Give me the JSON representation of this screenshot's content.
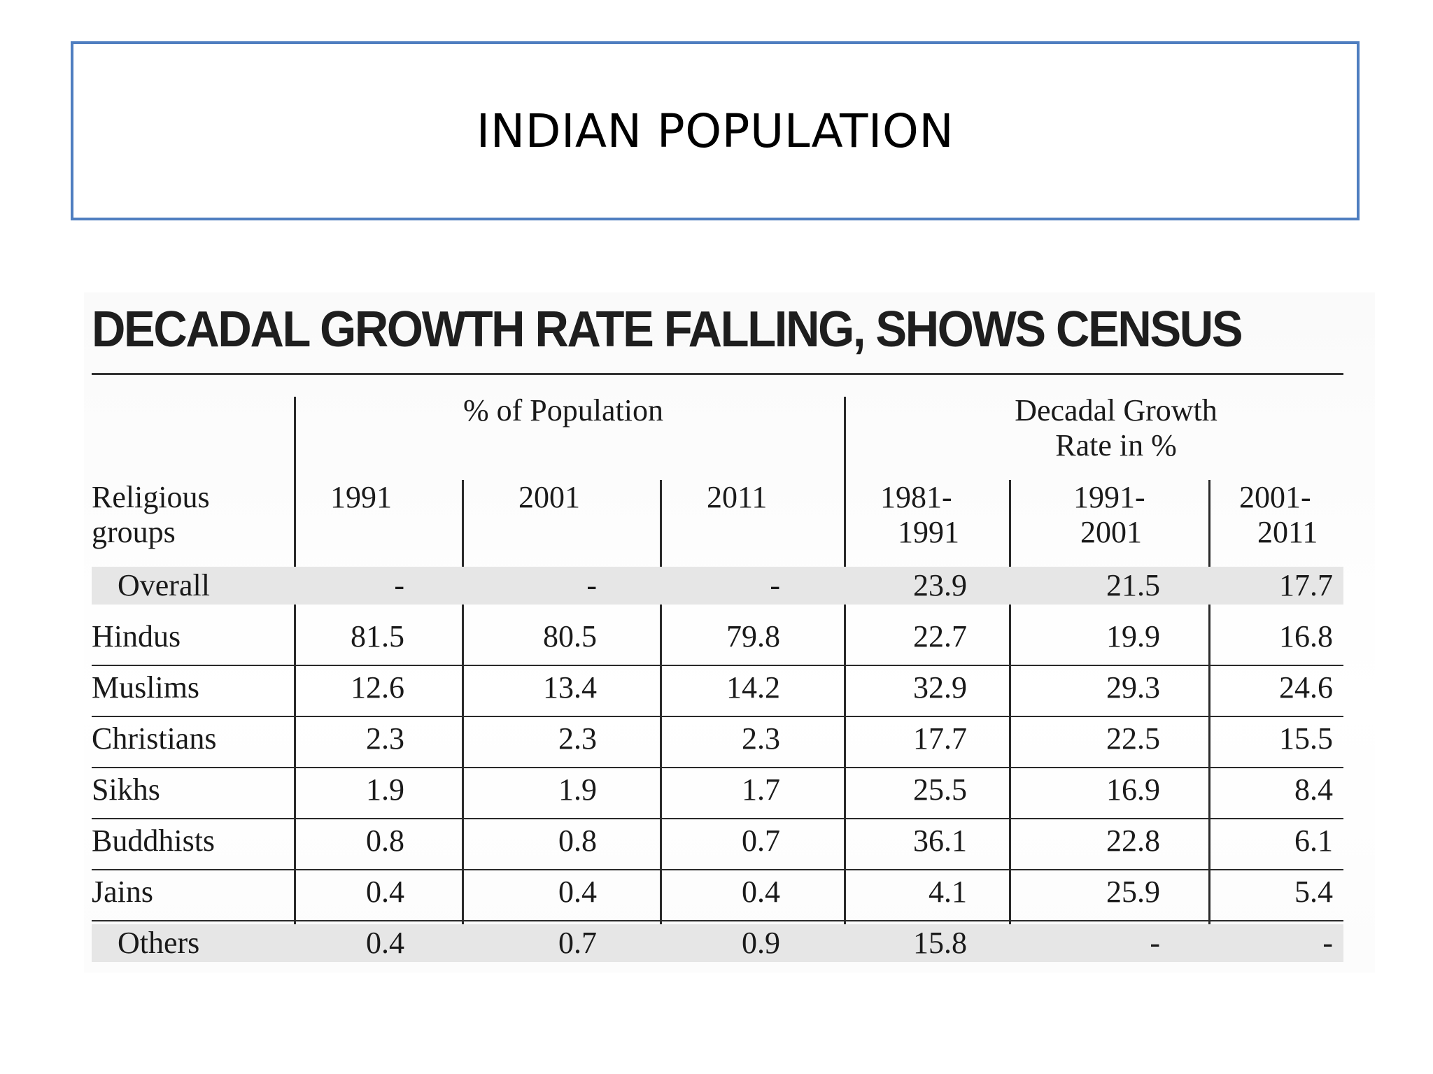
{
  "slide": {
    "title": "INDIAN POPULATION"
  },
  "clipping": {
    "headline": "DECADAL GROWTH RATE FALLING, SHOWS CENSUS",
    "group_headers": {
      "population": "% of Population",
      "growth_line1": "Decadal Growth",
      "growth_line2": "Rate in %"
    },
    "columns": {
      "label_line1": "Religious",
      "label_line2": "groups",
      "c1": "1991",
      "c2": "2001",
      "c3": "2011",
      "c4_line1": "1981-",
      "c4_line2": "1991",
      "c5_line1": "1991-",
      "c5_line2": "2001",
      "c6_line1": "2001-",
      "c6_line2": "2011"
    },
    "rows": [
      {
        "label": "Overall",
        "values": [
          "-",
          "-",
          "-",
          "23.9",
          "21.5",
          "17.7"
        ],
        "shaded": true
      },
      {
        "label": "Hindus",
        "values": [
          "81.5",
          "80.5",
          "79.8",
          "22.7",
          "19.9",
          "16.8"
        ],
        "shaded": false
      },
      {
        "label": "Muslims",
        "values": [
          "12.6",
          "13.4",
          "14.2",
          "32.9",
          "29.3",
          "24.6"
        ],
        "shaded": false
      },
      {
        "label": "Christians",
        "values": [
          "2.3",
          "2.3",
          "2.3",
          "17.7",
          "22.5",
          "15.5"
        ],
        "shaded": false
      },
      {
        "label": "Sikhs",
        "values": [
          "1.9",
          "1.9",
          "1.7",
          "25.5",
          "16.9",
          "8.4"
        ],
        "shaded": false
      },
      {
        "label": "Buddhists",
        "values": [
          "0.8",
          "0.8",
          "0.7",
          "36.1",
          "22.8",
          "6.1"
        ],
        "shaded": false
      },
      {
        "label": "Jains",
        "values": [
          "0.4",
          "0.4",
          "0.4",
          "4.1",
          "25.9",
          "5.4"
        ],
        "shaded": false
      },
      {
        "label": "Others",
        "values": [
          "0.4",
          "0.7",
          "0.9",
          "15.8",
          "-",
          "-"
        ],
        "shaded": true
      }
    ]
  }
}
